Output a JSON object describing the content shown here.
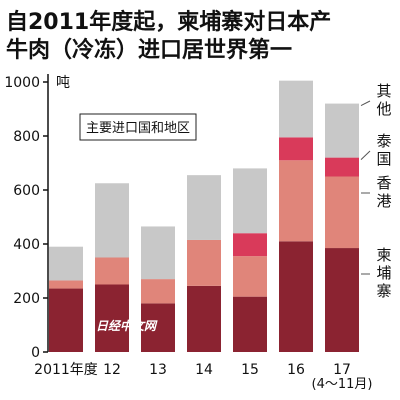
{
  "header": {
    "title_line1": "自2011年度起，柬埔寨对日本产",
    "title_line2": "牛肉（冷冻）进口居世界第一"
  },
  "watermark": "日经中文网",
  "chart_data": {
    "type": "bar",
    "stacked": true,
    "title": "自2011年度起，柬埔寨对日本产牛肉（冷冻）进口居世界第一",
    "ylabel": "吨",
    "ylim": [
      0,
      1000
    ],
    "yticks": [
      0,
      200,
      400,
      600,
      800,
      1000
    ],
    "categories": [
      "2011年度",
      "12",
      "13",
      "14",
      "15",
      "16",
      "17"
    ],
    "period_note": "(4〜11月)",
    "annotation": "主要进口国和地区",
    "series": [
      {
        "name": "柬埔寨",
        "color": "#8b2331",
        "values": [
          235,
          250,
          180,
          245,
          205,
          410,
          385
        ]
      },
      {
        "name": "香港",
        "color": "#e0857a",
        "values": [
          30,
          100,
          90,
          170,
          150,
          300,
          265
        ]
      },
      {
        "name": "泰国",
        "color": "#d93a5a",
        "values": [
          0,
          0,
          0,
          0,
          85,
          85,
          70
        ]
      },
      {
        "name": "其他",
        "color": "#c8c8c8",
        "values": [
          125,
          275,
          195,
          240,
          240,
          210,
          200
        ]
      }
    ],
    "series_labels": [
      {
        "series": "其他",
        "text": "其他"
      },
      {
        "series": "泰国",
        "text": "泰国"
      },
      {
        "series": "香港",
        "text": "香港"
      },
      {
        "series": "柬埔寨",
        "text": "柬埔寨"
      }
    ]
  }
}
